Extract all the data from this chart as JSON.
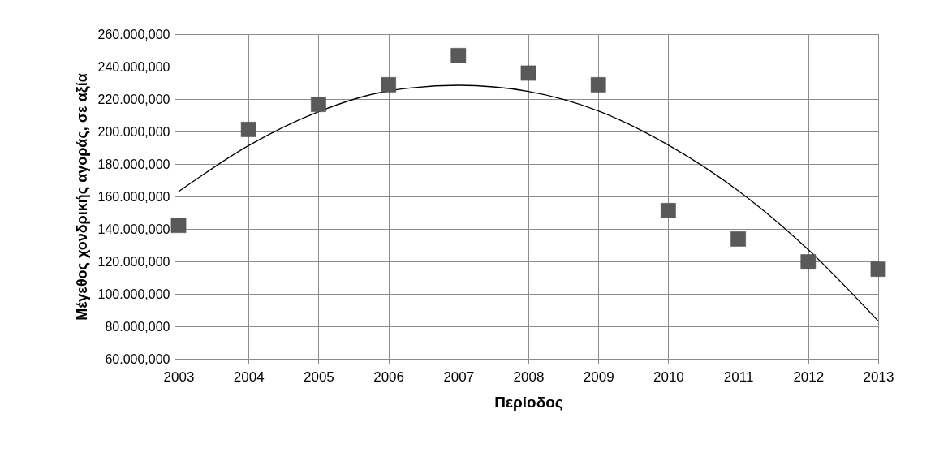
{
  "chart_data": {
    "type": "scatter",
    "xlabel": "Περίοδος",
    "ylabel": "Μέγεθος χονδρικής αγοράς, σε αξία",
    "categories": [
      "2003",
      "2004",
      "2005",
      "2006",
      "2007",
      "2008",
      "2009",
      "2010",
      "2011",
      "2012",
      "2013"
    ],
    "series": [
      {
        "type": "line",
        "color": "#000000",
        "marker": "none",
        "values": [
          163000,
          191300,
          212200,
          225000,
          228500,
          224700,
          212700,
          191700,
          163500,
          127200,
          83300
        ]
      },
      {
        "color": "#595959",
        "marker": "square",
        "values": [
          142200,
          201300,
          216700,
          228800,
          246800,
          236000,
          228800,
          151300,
          133800,
          119700,
          115200
        ]
      }
    ],
    "ylim": [
      60000,
      260000
    ],
    "yticks": [
      {
        "value": 60000,
        "label": "60.000,000"
      },
      {
        "value": 80000,
        "label": "80.000,000"
      },
      {
        "value": 100000,
        "label": "100.000,000"
      },
      {
        "value": 120000,
        "label": "120.000,000"
      },
      {
        "value": 140000,
        "label": "140.000,000"
      },
      {
        "value": 160000,
        "label": "160.000,000"
      },
      {
        "value": 180000,
        "label": "180.000,000"
      },
      {
        "value": 200000,
        "label": "200.000,000"
      },
      {
        "value": 220000,
        "label": "220.000,000"
      },
      {
        "value": 240000,
        "label": "240.000,000"
      },
      {
        "value": 260000,
        "label": "260.000,000"
      }
    ],
    "grid": true
  }
}
